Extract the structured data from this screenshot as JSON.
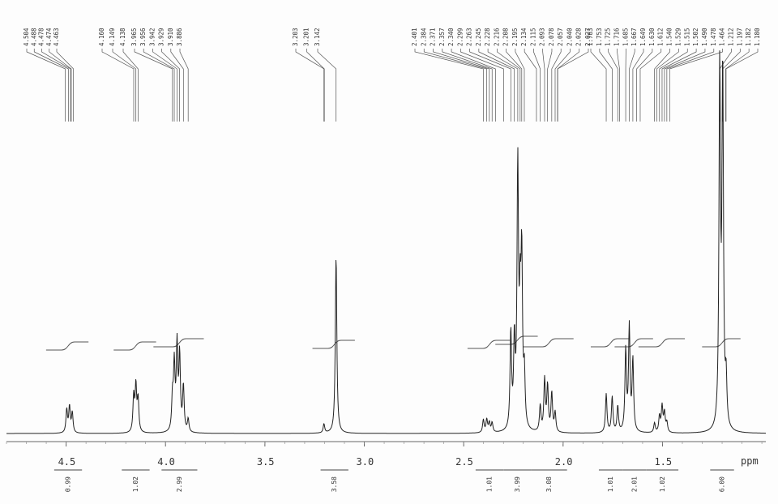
{
  "chart_data": {
    "type": "line",
    "title": "",
    "xlabel": "ppm",
    "xlim": [
      4.8,
      0.98
    ],
    "x_reversed": true,
    "ylim": [
      0,
      1
    ],
    "grid": false,
    "legend": "none",
    "x_ticks": [
      {
        "label": "4.5",
        "value": 4.5
      },
      {
        "label": "4.0",
        "value": 4.0
      },
      {
        "label": "3.5",
        "value": 3.5
      },
      {
        "label": "3.0",
        "value": 3.0
      },
      {
        "label": "2.5",
        "value": 2.5
      },
      {
        "label": "2.0",
        "value": 2.0
      },
      {
        "label": "1.5",
        "value": 1.5
      }
    ],
    "peak_labels": [
      {
        "group": "4.5",
        "values": [
          "4.504",
          "4.488",
          "4.478",
          "4.474",
          "4.463"
        ]
      },
      {
        "group": "4.15",
        "values": [
          "4.160",
          "4.149",
          "4.138"
        ]
      },
      {
        "group": "3.9",
        "values": [
          "3.965",
          "3.956",
          "3.942",
          "3.929",
          "3.910",
          "3.886"
        ]
      },
      {
        "group": "3.2",
        "values": [
          "3.203",
          "3.201",
          "3.142"
        ]
      },
      {
        "group": "2.4-2.0",
        "values": [
          "2.401",
          "2.384",
          "2.371",
          "2.357",
          "2.340",
          "2.299",
          "2.263",
          "2.245",
          "2.228",
          "2.216",
          "2.208",
          "2.195",
          "2.134",
          "2.115",
          "2.093",
          "2.078",
          "2.057",
          "2.040",
          "2.028",
          "2.027"
        ]
      },
      {
        "group": "1.8-1.18",
        "values": [
          "1.783",
          "1.753",
          "1.725",
          "1.716",
          "1.685",
          "1.667",
          "1.649",
          "1.630",
          "1.612",
          "1.540",
          "1.529",
          "1.515",
          "1.502",
          "1.490",
          "1.478",
          "1.464",
          "1.212",
          "1.197",
          "1.182",
          "1.180"
        ]
      }
    ],
    "integrals": [
      {
        "value": "0.99",
        "from": 4.56,
        "to": 4.42
      },
      {
        "value": "1.02",
        "from": 4.22,
        "to": 4.08
      },
      {
        "value": "2.99",
        "from": 4.02,
        "to": 3.84
      },
      {
        "value": "3.58",
        "from": 3.22,
        "to": 3.08
      },
      {
        "value": "1.01",
        "from": 2.44,
        "to": 2.3
      },
      {
        "value": "3.99",
        "from": 2.3,
        "to": 2.16
      },
      {
        "value": "3.08",
        "from": 2.16,
        "to": 1.98
      },
      {
        "value": "1.01",
        "from": 1.82,
        "to": 1.7
      },
      {
        "value": "2.01",
        "from": 1.7,
        "to": 1.58
      },
      {
        "value": "1.02",
        "from": 1.58,
        "to": 1.42
      },
      {
        "value": "6.00",
        "from": 1.26,
        "to": 1.14
      }
    ],
    "series": [
      {
        "peaks": [
          {
            "x": 4.497,
            "h": 0.072
          },
          {
            "x": 4.483,
            "h": 0.08
          },
          {
            "x": 4.469,
            "h": 0.062
          },
          {
            "x": 4.16,
            "h": 0.11
          },
          {
            "x": 4.149,
            "h": 0.14
          },
          {
            "x": 4.138,
            "h": 0.1
          },
          {
            "x": 3.965,
            "h": 0.1
          },
          {
            "x": 3.956,
            "h": 0.2
          },
          {
            "x": 3.942,
            "h": 0.26
          },
          {
            "x": 3.929,
            "h": 0.23
          },
          {
            "x": 3.91,
            "h": 0.14
          },
          {
            "x": 3.886,
            "h": 0.04
          },
          {
            "x": 3.203,
            "h": 0.028
          },
          {
            "x": 3.142,
            "h": 0.55
          },
          {
            "x": 2.401,
            "h": 0.04
          },
          {
            "x": 2.384,
            "h": 0.04
          },
          {
            "x": 2.371,
            "h": 0.03
          },
          {
            "x": 2.357,
            "h": 0.03
          },
          {
            "x": 2.263,
            "h": 0.3
          },
          {
            "x": 2.245,
            "h": 0.26
          },
          {
            "x": 2.228,
            "h": 0.8
          },
          {
            "x": 2.216,
            "h": 0.32
          },
          {
            "x": 2.208,
            "h": 0.5
          },
          {
            "x": 2.195,
            "h": 0.16
          },
          {
            "x": 2.115,
            "h": 0.08
          },
          {
            "x": 2.093,
            "h": 0.16
          },
          {
            "x": 2.078,
            "h": 0.14
          },
          {
            "x": 2.057,
            "h": 0.12
          },
          {
            "x": 2.04,
            "h": 0.06
          },
          {
            "x": 1.783,
            "h": 0.12
          },
          {
            "x": 1.753,
            "h": 0.11
          },
          {
            "x": 1.725,
            "h": 0.08
          },
          {
            "x": 1.685,
            "h": 0.25
          },
          {
            "x": 1.667,
            "h": 0.32
          },
          {
            "x": 1.649,
            "h": 0.22
          },
          {
            "x": 1.54,
            "h": 0.03
          },
          {
            "x": 1.515,
            "h": 0.05
          },
          {
            "x": 1.502,
            "h": 0.08
          },
          {
            "x": 1.49,
            "h": 0.06
          },
          {
            "x": 1.478,
            "h": 0.03
          },
          {
            "x": 1.212,
            "h": 1.1
          },
          {
            "x": 1.197,
            "h": 1.1
          },
          {
            "x": 1.18,
            "h": 0.14
          }
        ]
      }
    ]
  }
}
